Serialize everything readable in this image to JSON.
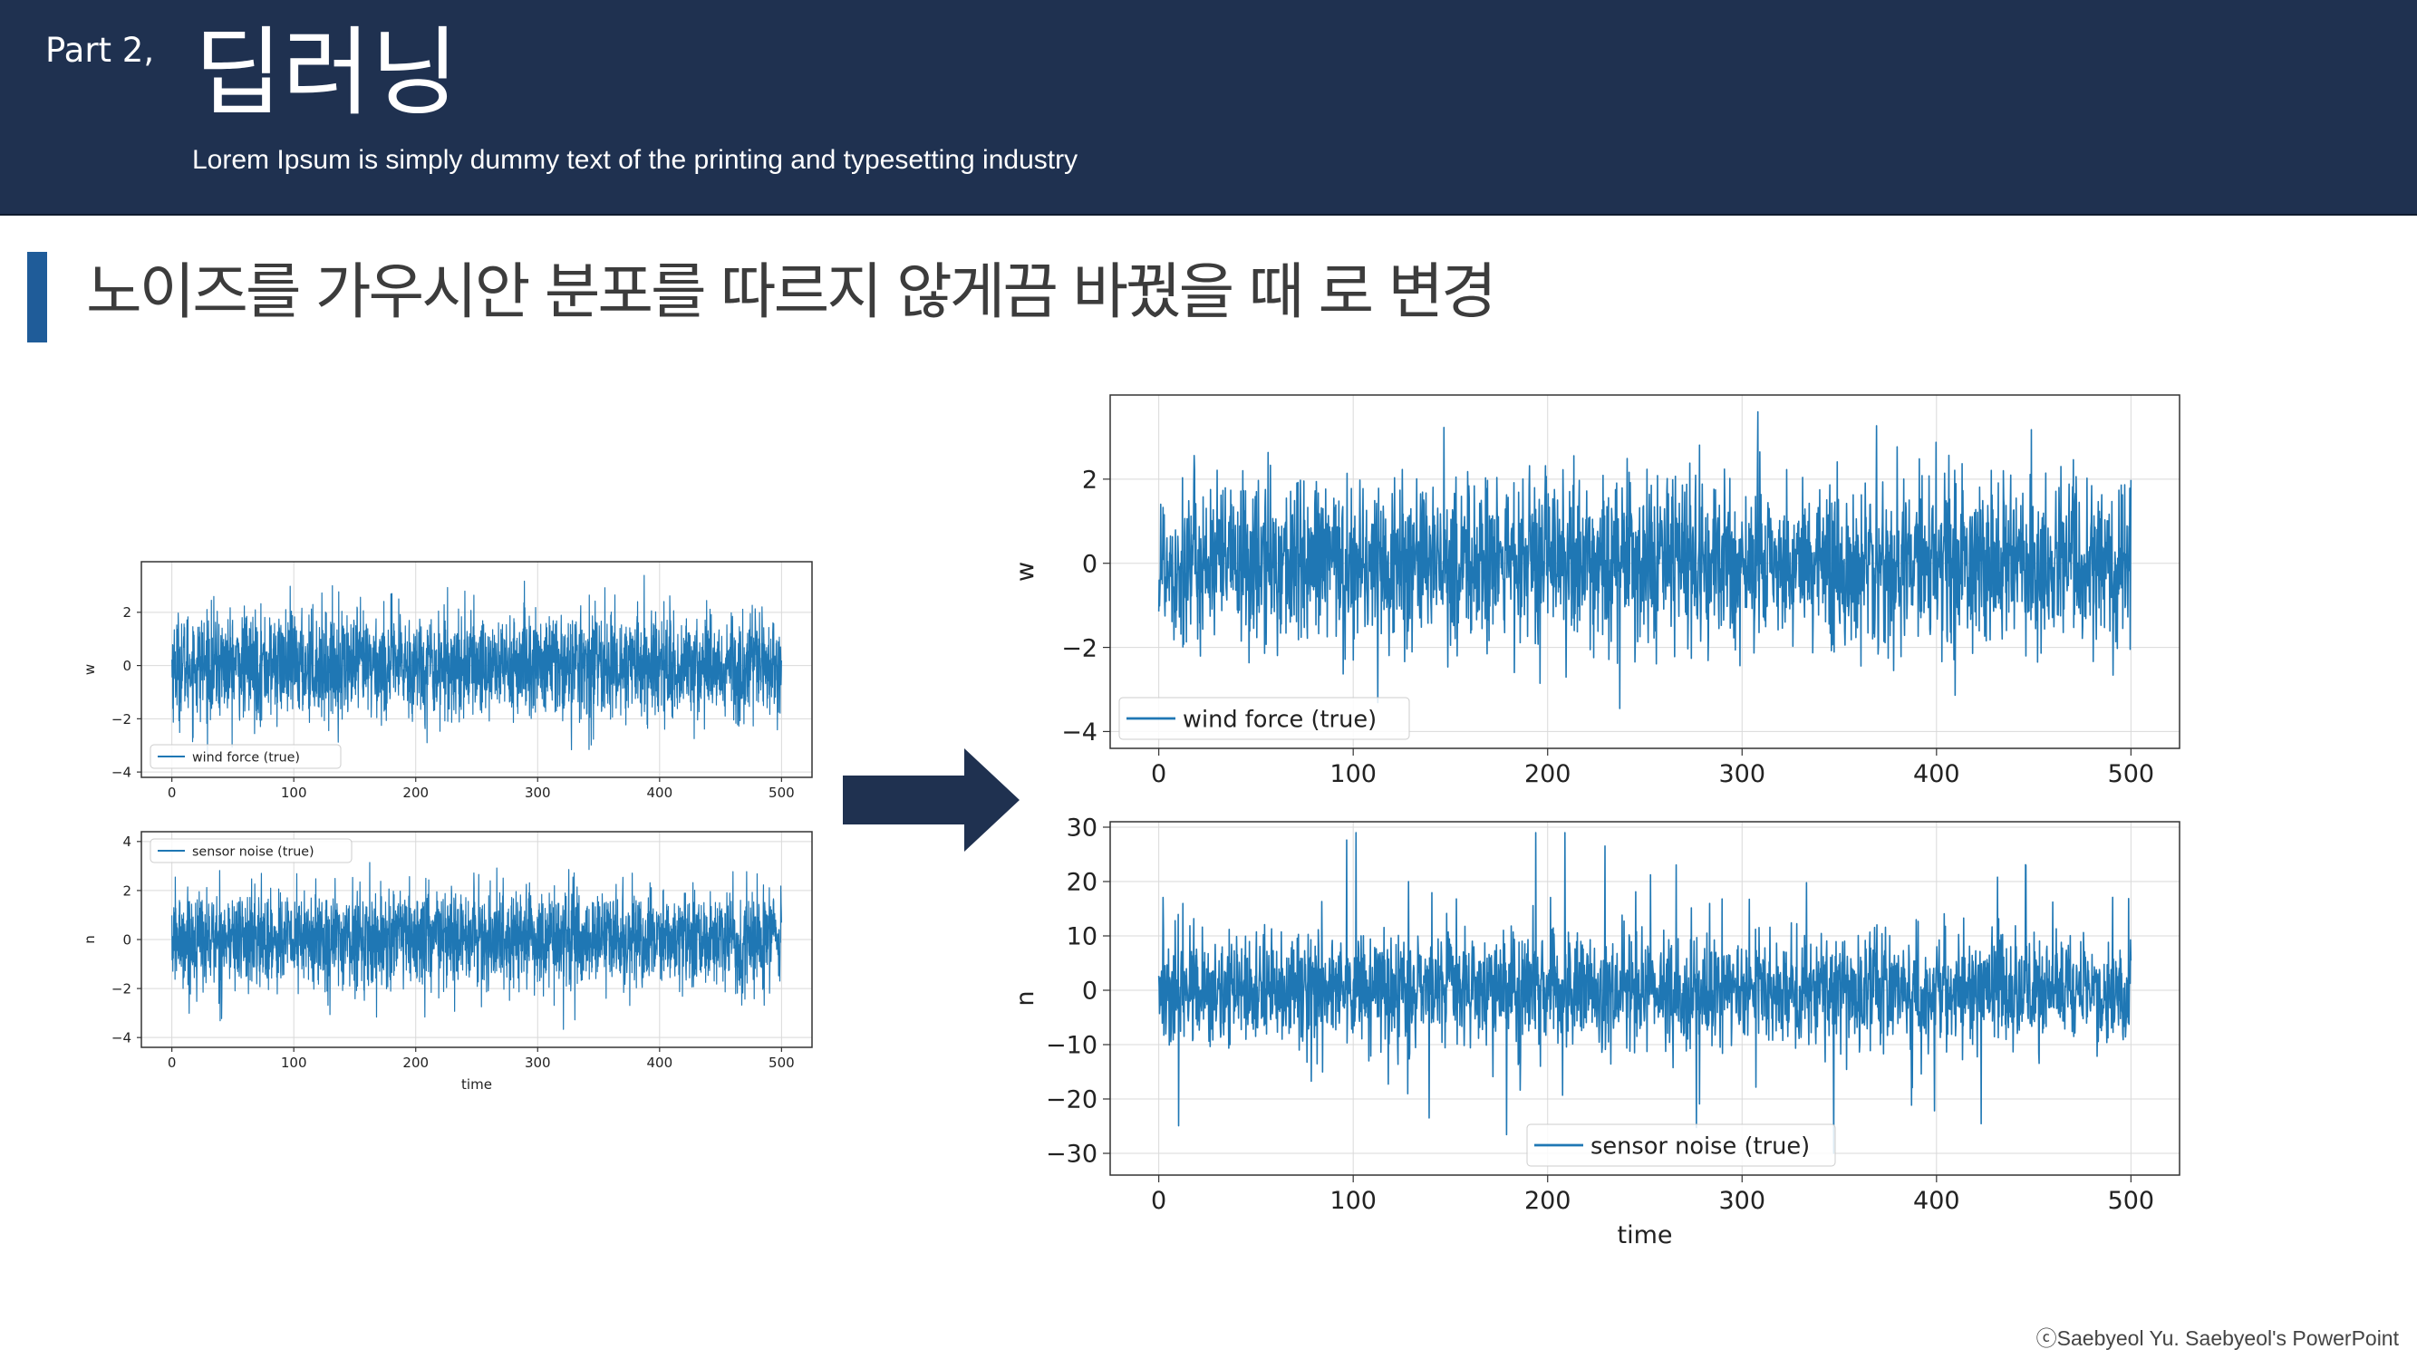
{
  "header": {
    "part_label": "Part 2,",
    "title": "딥러닝",
    "subtitle": "Lorem Ipsum is simply dummy text of the printing and typesetting industry"
  },
  "section": {
    "title": "노이즈를 가우시안 분포를 따르지 않게끔 바꿨을 때 로 변경"
  },
  "footer": {
    "credit": "ⓒSaebyeol Yu. Saebyeol's PowerPoint"
  },
  "colors": {
    "header_bg": "#1f3150",
    "accent_bar": "#1f5c99",
    "series": "#1f77b4",
    "arrow": "#1f3150"
  },
  "chart_data": [
    {
      "id": "small_w",
      "type": "line",
      "ylabel": "w",
      "xlabel": "",
      "x_range": [
        0,
        500
      ],
      "ylim": [
        -4.2,
        3.9
      ],
      "xticks": [
        0,
        100,
        200,
        300,
        400,
        500
      ],
      "yticks": [
        -4,
        -2,
        0,
        2
      ],
      "legend": "wind force (true)",
      "legend_position": "lower-left",
      "grid": true,
      "series": [
        {
          "name": "wind force (true)",
          "distribution": "gaussian",
          "sigma": 1.0,
          "min": -3.9,
          "max": 3.6
        }
      ]
    },
    {
      "id": "small_n",
      "type": "line",
      "ylabel": "n",
      "xlabel": "time",
      "x_range": [
        0,
        500
      ],
      "ylim": [
        -4.4,
        4.4
      ],
      "xticks": [
        0,
        100,
        200,
        300,
        400,
        500
      ],
      "yticks": [
        -4,
        -2,
        0,
        2,
        4
      ],
      "legend": "sensor noise (true)",
      "legend_position": "upper-left",
      "grid": true,
      "series": [
        {
          "name": "sensor noise (true)",
          "distribution": "gaussian",
          "sigma": 1.0,
          "min": -3.8,
          "max": 4.1
        }
      ]
    },
    {
      "id": "large_w",
      "type": "line",
      "ylabel": "w",
      "xlabel": "",
      "x_range": [
        0,
        500
      ],
      "ylim": [
        -4.4,
        4.0
      ],
      "xticks": [
        0,
        100,
        200,
        300,
        400,
        500
      ],
      "yticks": [
        -4,
        -2,
        0,
        2
      ],
      "legend": "wind force (true)",
      "legend_position": "lower-left",
      "grid": true,
      "series": [
        {
          "name": "wind force (true)",
          "distribution": "gaussian",
          "sigma": 1.0,
          "min": -4.0,
          "max": 3.6
        }
      ]
    },
    {
      "id": "large_n",
      "type": "line",
      "ylabel": "n",
      "xlabel": "time",
      "x_range": [
        0,
        500
      ],
      "ylim": [
        -34,
        31
      ],
      "xticks": [
        0,
        100,
        200,
        300,
        400,
        500
      ],
      "yticks": [
        -30,
        -20,
        -10,
        0,
        10,
        20,
        30
      ],
      "legend": "sensor noise (true)",
      "legend_position": "lower-center",
      "grid": true,
      "series": [
        {
          "name": "sensor noise (true)",
          "distribution": "heavy-tailed (non-gaussian)",
          "sigma": 5.0,
          "min": -30,
          "max": 29
        }
      ]
    }
  ]
}
